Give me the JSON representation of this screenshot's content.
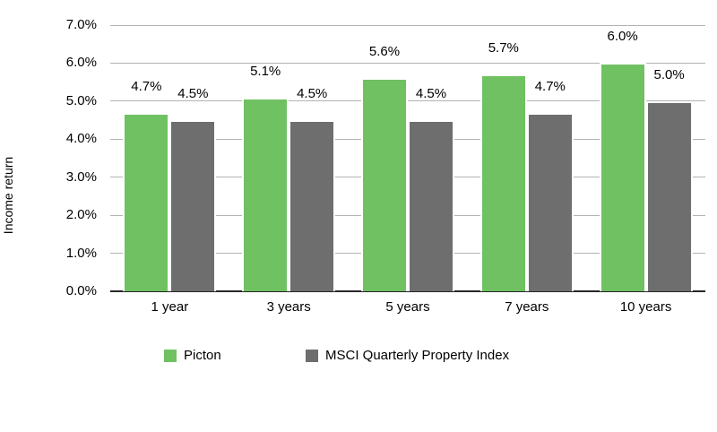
{
  "chart_data": {
    "type": "bar",
    "title": "",
    "ylabel": "Income return",
    "xlabel": "",
    "categories": [
      "1 year",
      "3 years",
      "5 years",
      "7 years",
      "10 years"
    ],
    "series": [
      {
        "name": "Picton",
        "color": "#6fc162",
        "values": [
          4.7,
          5.1,
          5.6,
          5.7,
          6.0
        ],
        "data_labels": [
          "4.7%",
          "5.1%",
          "5.6%",
          "5.7%",
          "6.0%"
        ]
      },
      {
        "name": "MSCI Quarterly Property Index",
        "color": "#6e6e6e",
        "values": [
          4.5,
          4.5,
          4.5,
          4.7,
          5.0
        ],
        "data_labels": [
          "4.5%",
          "4.5%",
          "4.5%",
          "4.7%",
          "5.0%"
        ]
      }
    ],
    "ylim": [
      0,
      7
    ],
    "ytick_values": [
      0,
      1,
      2,
      3,
      4,
      5,
      6,
      7
    ],
    "ytick_labels": [
      "0.0%",
      "1.0%",
      "2.0%",
      "3.0%",
      "4.0%",
      "5.0%",
      "6.0%",
      "7.0%"
    ],
    "grid": true,
    "legend_position": "bottom"
  },
  "colors": {
    "gridline": "#b3b3b3",
    "axis_line": "#262626",
    "text": "#000000",
    "background": "#ffffff"
  }
}
